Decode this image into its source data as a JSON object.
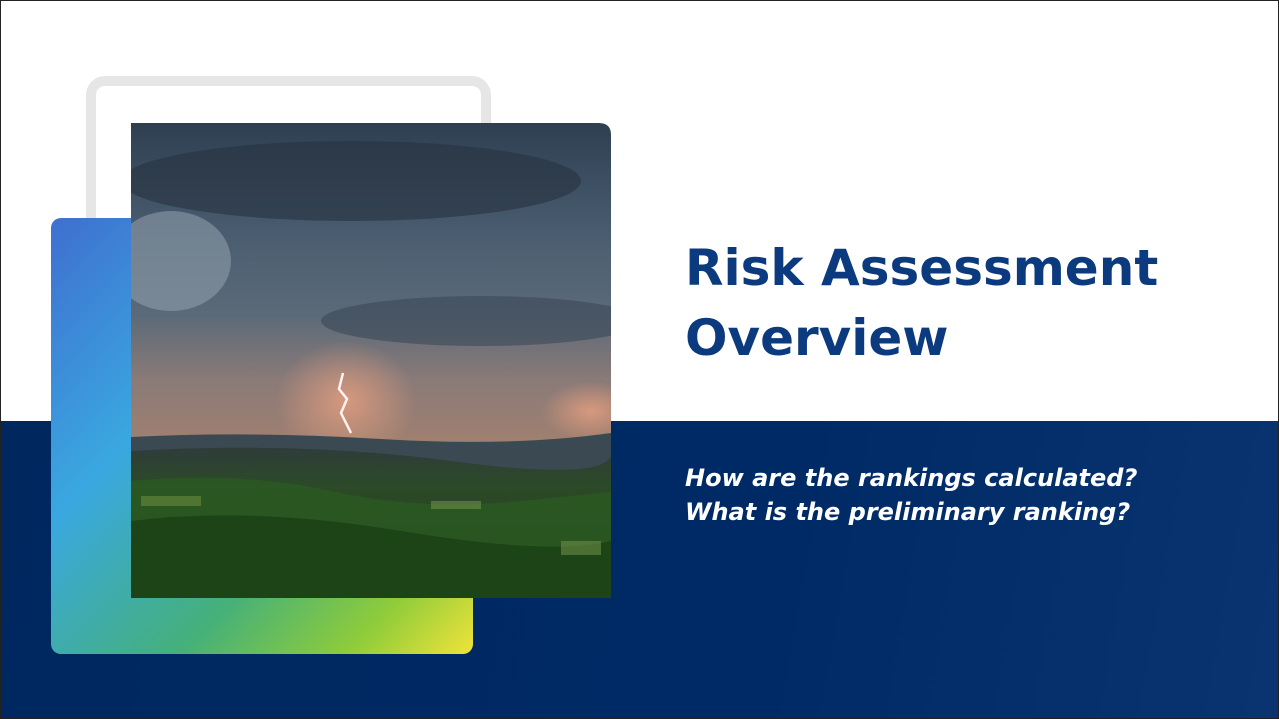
{
  "slide": {
    "title": "Risk Assessment Overview",
    "questions": [
      "How are the rankings calculated?",
      "What is the preliminary ranking?"
    ]
  }
}
